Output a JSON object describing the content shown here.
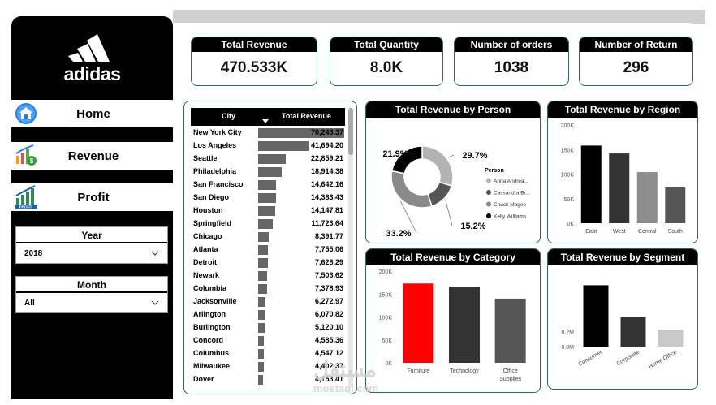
{
  "brand": {
    "logo_text": "adidas"
  },
  "nav": [
    {
      "label": "Home",
      "icon": "home-icon"
    },
    {
      "label": "Revenue",
      "icon": "revenue-icon"
    },
    {
      "label": "Profit",
      "icon": "profit-icon"
    }
  ],
  "profit_icon_text": "PROFIT",
  "slicers": {
    "year": {
      "title": "Year",
      "value": "2018"
    },
    "month": {
      "title": "Month",
      "value": "All"
    }
  },
  "kpis": [
    {
      "title": "Total Revenue",
      "value": "470.533K"
    },
    {
      "title": "Total Quantity",
      "value": "8.0K"
    },
    {
      "title": "Number of orders",
      "value": "1038"
    },
    {
      "title": "Number of Return",
      "value": "296"
    }
  ],
  "city_table": {
    "headers": [
      "City",
      "Total Revenue"
    ],
    "rows": [
      {
        "city": "New York City",
        "value": "70,243.37",
        "num": 70243.37
      },
      {
        "city": "Los Angeles",
        "value": "41,694.20",
        "num": 41694.2
      },
      {
        "city": "Seattle",
        "value": "22,859.21",
        "num": 22859.21
      },
      {
        "city": "Philadelphia",
        "value": "18,914.38",
        "num": 18914.38
      },
      {
        "city": "San Francisco",
        "value": "14,642.16",
        "num": 14642.16
      },
      {
        "city": "San Diego",
        "value": "14,383.43",
        "num": 14383.43
      },
      {
        "city": "Houston",
        "value": "14,147.81",
        "num": 14147.81
      },
      {
        "city": "Springfield",
        "value": "11,723.64",
        "num": 11723.64
      },
      {
        "city": "Chicago",
        "value": "8,391.77",
        "num": 8391.77
      },
      {
        "city": "Atlanta",
        "value": "7,755.06",
        "num": 7755.06
      },
      {
        "city": "Detroit",
        "value": "7,628.29",
        "num": 7628.29
      },
      {
        "city": "Newark",
        "value": "7,503.62",
        "num": 7503.62
      },
      {
        "city": "Columbia",
        "value": "7,378.93",
        "num": 7378.93
      },
      {
        "city": "Jacksonville",
        "value": "6,272.97",
        "num": 6272.97
      },
      {
        "city": "Arlington",
        "value": "6,070.82",
        "num": 6070.82
      },
      {
        "city": "Burlington",
        "value": "5,120.10",
        "num": 5120.1
      },
      {
        "city": "Concord",
        "value": "4,585.36",
        "num": 4585.36
      },
      {
        "city": "Columbus",
        "value": "4,547.12",
        "num": 4547.12
      },
      {
        "city": "Milwaukee",
        "value": "4,402.37",
        "num": 4402.37
      },
      {
        "city": "Dover",
        "value": "4,153.41",
        "num": 4153.41
      }
    ]
  },
  "chart_data": [
    {
      "type": "pie",
      "title": "Total Revenue by Person",
      "legend_title": "Person",
      "legend_position": "right",
      "slices": [
        {
          "name": "Anna Andrea...",
          "value": 29.7,
          "label": "29.7%",
          "color": "#b3b3b3"
        },
        {
          "name": "Cassandra Br...",
          "value": 15.2,
          "label": "15.2%",
          "color": "#555555"
        },
        {
          "name": "Chuck Magee",
          "value": 33.2,
          "label": "33.2%",
          "color": "#8a8a8a"
        },
        {
          "name": "Kelly Williams",
          "value": 21.9,
          "label": "21.9%",
          "color": "#000000"
        }
      ]
    },
    {
      "type": "bar",
      "title": "Total Revenue by Region",
      "categories": [
        "East",
        "West",
        "Central",
        "South"
      ],
      "values": [
        158000,
        142000,
        104000,
        73000
      ],
      "colors": [
        "#000000",
        "#333333",
        "#8c8c8c",
        "#555555"
      ],
      "ylim": [
        0,
        200000
      ],
      "yticks": [
        "0K",
        "50K",
        "100K",
        "150K",
        "200K"
      ],
      "grid": false
    },
    {
      "type": "bar",
      "title": "Total Revenue by Category",
      "categories": [
        "Furniture",
        "Technology",
        "Office Supplies"
      ],
      "values": [
        173000,
        166000,
        140000
      ],
      "colors": [
        "#ff0000",
        "#333333",
        "#555555"
      ],
      "ylim": [
        0,
        200000
      ],
      "yticks": [
        "0K",
        "50K",
        "100K",
        "150K",
        "200K"
      ],
      "grid": false
    },
    {
      "type": "bar",
      "title": "Total Revenue by Segment",
      "categories": [
        "Consumer",
        "Corporate",
        "Home Office"
      ],
      "values": [
        270000,
        130000,
        75000
      ],
      "colors": [
        "#000000",
        "#333333",
        "#c8c8c8"
      ],
      "ylim": [
        0,
        300000
      ],
      "yticks": [
        "0.0M",
        "0.2M"
      ],
      "grid": false
    }
  ],
  "watermark": {
    "text": "مستقل",
    "sub": "mostaql.com"
  }
}
